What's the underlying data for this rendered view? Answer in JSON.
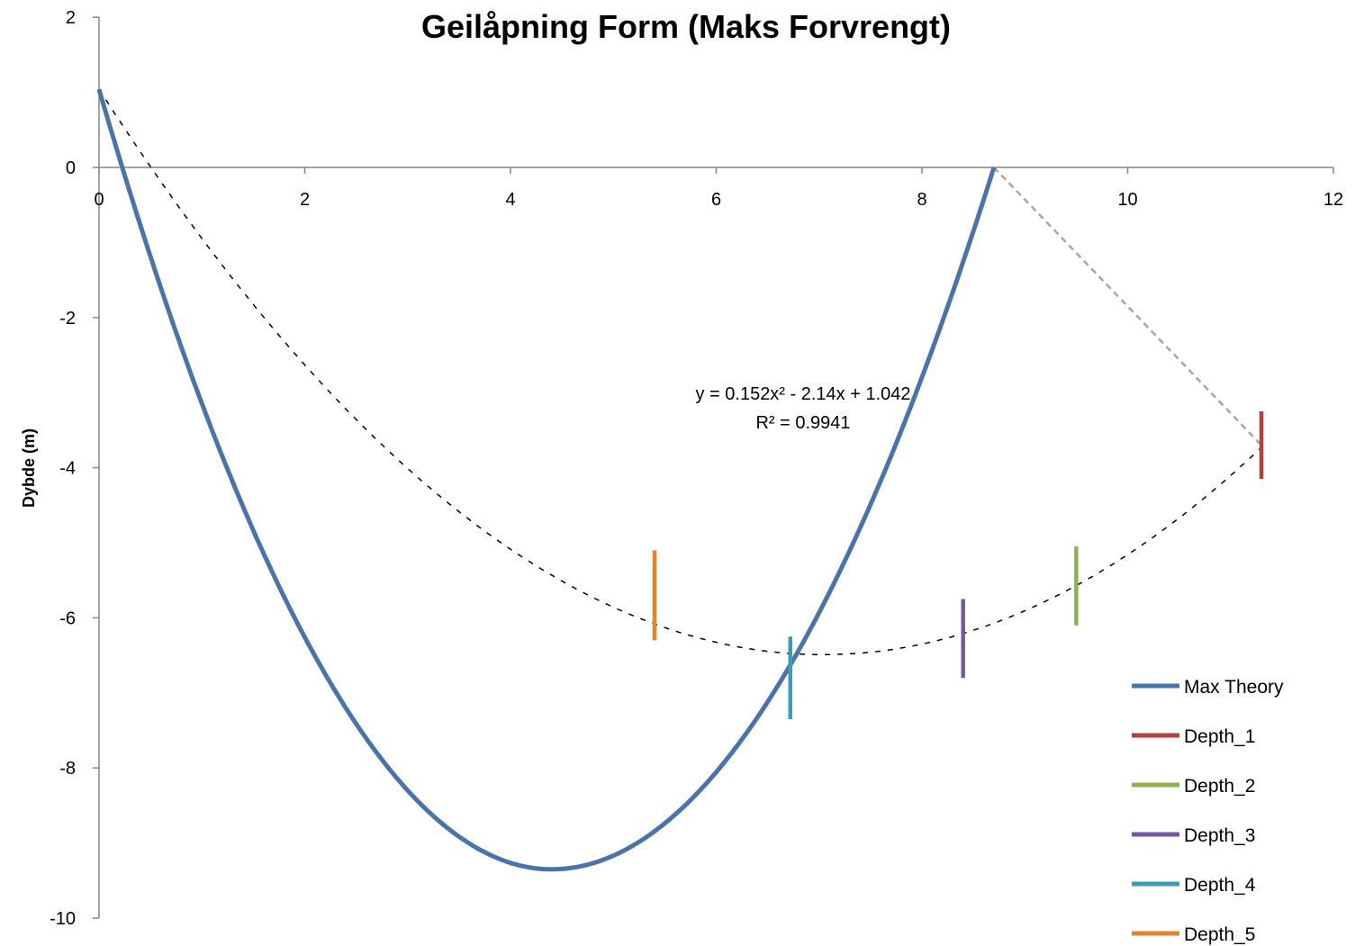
{
  "chart_data": {
    "type": "line",
    "title": "Geilåpning Form (Maks Forvrengt)",
    "xlabel": "",
    "ylabel": "Dybde (m)",
    "xlim": [
      0,
      12
    ],
    "ylim": [
      -10,
      2
    ],
    "xticks": [
      "0",
      "2",
      "4",
      "6",
      "8",
      "10",
      "12"
    ],
    "yticks": [
      "2",
      "0",
      "-2",
      "-4",
      "-6",
      "-8",
      "-10"
    ],
    "grid": false,
    "legend_position": "bottom-right",
    "series": [
      {
        "name": "Max Theory",
        "color": "#4A73AA",
        "shape": "parabola",
        "vertex": [
          4.4,
          -9.35
        ],
        "x_range": [
          0,
          8.7
        ],
        "start": [
          0,
          1.04
        ],
        "end": [
          8.7,
          0
        ]
      },
      {
        "name": "Depth_1",
        "color": "#B2413E",
        "x": 11.3,
        "y": [
          -4.15,
          -3.25
        ]
      },
      {
        "name": "Depth_2",
        "color": "#8EB24A",
        "x": 9.5,
        "y": [
          -6.1,
          -5.05
        ]
      },
      {
        "name": "Depth_3",
        "color": "#7359A0",
        "x": 8.4,
        "y": [
          -6.8,
          -5.75
        ]
      },
      {
        "name": "Depth_4",
        "color": "#3A9DB8",
        "x": 6.72,
        "y": [
          -7.35,
          -6.25
        ]
      },
      {
        "name": "Depth_5",
        "color": "#E5832F",
        "x": 5.4,
        "y": [
          -6.3,
          -5.1
        ]
      }
    ],
    "trendline": {
      "equation": "y = 0.152x² - 2.14x + 1.042",
      "r_squared": "R² = 0.9941",
      "coefficients": [
        0.152,
        -2.14,
        1.042
      ],
      "x_range": [
        0,
        11.3
      ],
      "style": "dashed",
      "color": "#000000"
    },
    "connector": {
      "from": [
        8.7,
        0
      ],
      "to": [
        11.3,
        -3.7
      ],
      "style": "dashed",
      "color": "#A6A6A6"
    }
  }
}
